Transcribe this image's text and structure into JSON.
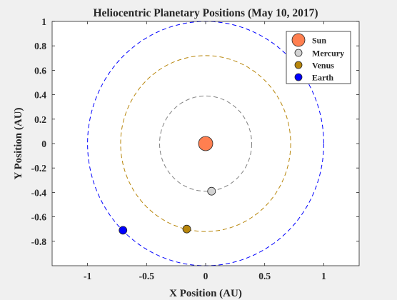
{
  "chart_data": {
    "type": "scatter",
    "title": "Heliocentric Planetary Positions (May 10, 2017)",
    "xlabel": "X Position (AU)",
    "ylabel": "Y Position (AU)",
    "xlim": [
      -1.3,
      1.3
    ],
    "ylim": [
      -1.0,
      1.0
    ],
    "xticks": [
      -1,
      -0.5,
      0,
      0.5,
      1
    ],
    "xtick_labels": [
      "-1",
      "-0.5",
      "0",
      "0.5",
      "1"
    ],
    "yticks": [
      1,
      0.8,
      0.6,
      0.4,
      0.2,
      0,
      -0.2,
      -0.4,
      -0.6,
      -0.8
    ],
    "ytick_labels": [
      "1",
      "0.8",
      "0.6",
      "0.4",
      "0.2",
      "0",
      "-0.2",
      "-0.4",
      "-0.6",
      "-0.8"
    ],
    "grid": false,
    "legend_position": "top-right",
    "series": [
      {
        "name": "Sun",
        "color": "#ff7f50",
        "x": 0.0,
        "y": 0.0,
        "marker_size": "large"
      },
      {
        "name": "Mercury",
        "color": "#d3d3d3",
        "x": 0.05,
        "y": -0.39,
        "marker_size": "small"
      },
      {
        "name": "Venus",
        "color": "#b8860b",
        "x": -0.16,
        "y": -0.7,
        "marker_size": "small"
      },
      {
        "name": "Earth",
        "color": "#0000ff",
        "x": -0.7,
        "y": -0.71,
        "marker_size": "small"
      }
    ],
    "orbits": [
      {
        "planet": "Mercury",
        "radius": 0.39,
        "color": "#808080"
      },
      {
        "planet": "Venus",
        "radius": 0.72,
        "color": "#b8860b"
      },
      {
        "planet": "Earth",
        "radius": 1.0,
        "color": "#0000ff"
      }
    ]
  }
}
